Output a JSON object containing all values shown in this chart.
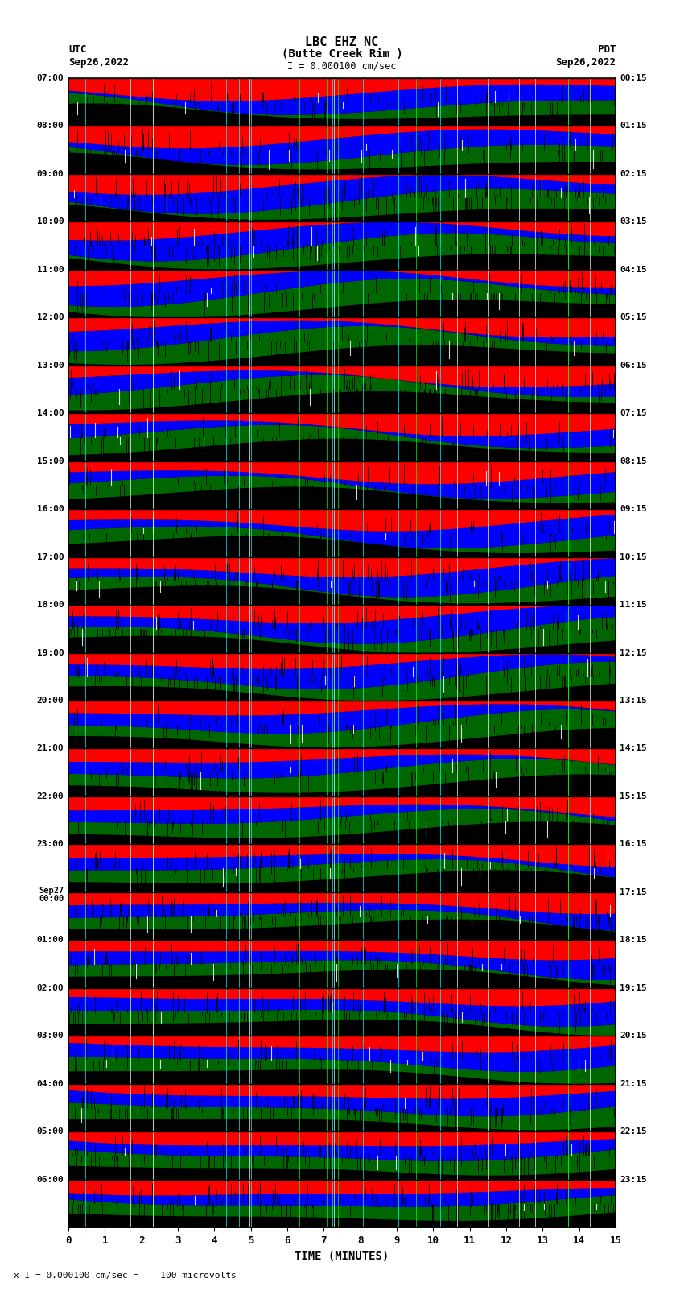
{
  "title_line1": "LBC EHZ NC",
  "title_line2": "(Butte Creek Rim )",
  "scale_label": "I = 0.000100 cm/sec",
  "left_label_top": "UTC",
  "left_label_date": "Sep26,2022",
  "right_label_top": "PDT",
  "right_label_date": "Sep26,2022",
  "bottom_label": "TIME (MINUTES)",
  "footer_label": "x I = 0.000100 cm/sec =    100 microvolts",
  "utc_times": [
    "07:00",
    "08:00",
    "09:00",
    "10:00",
    "11:00",
    "12:00",
    "13:00",
    "14:00",
    "15:00",
    "16:00",
    "17:00",
    "18:00",
    "19:00",
    "20:00",
    "21:00",
    "22:00",
    "23:00",
    "Sep27\n00:00",
    "01:00",
    "02:00",
    "03:00",
    "04:00",
    "05:00",
    "06:00"
  ],
  "pdt_times": [
    "00:15",
    "01:15",
    "02:15",
    "03:15",
    "04:15",
    "05:15",
    "06:15",
    "07:15",
    "08:15",
    "09:15",
    "10:15",
    "11:15",
    "12:15",
    "13:15",
    "14:15",
    "15:15",
    "16:15",
    "17:15",
    "18:15",
    "19:15",
    "20:15",
    "21:15",
    "22:15",
    "23:15"
  ],
  "num_rows": 24,
  "time_minutes": 15,
  "bg_color": "white",
  "fig_width": 8.5,
  "fig_height": 16.13,
  "dpi": 100
}
